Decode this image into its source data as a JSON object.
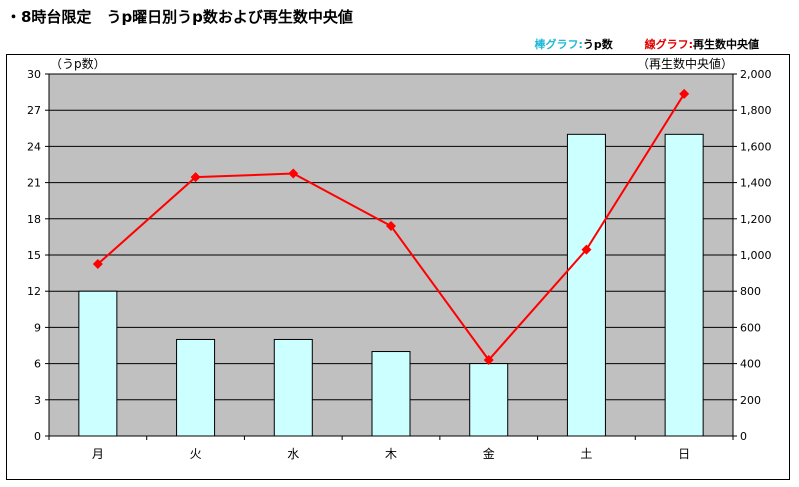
{
  "title": "・8時台限定　うp曜日別うp数および再生数中央値",
  "legend": {
    "bar_label": "棒グラフ:",
    "bar_value": "うp数",
    "line_label": "線グラフ:",
    "line_value": "再生数中央値"
  },
  "colors": {
    "bar_fill": "#ccffff",
    "plot_bg": "#c0c0c0",
    "line": "#ff0000",
    "bar_legend": "#1fb8d6",
    "line_legend": "#e00000"
  },
  "chart_data": {
    "type": "bar",
    "categories": [
      "月",
      "火",
      "水",
      "木",
      "金",
      "土",
      "日"
    ],
    "series": [
      {
        "type": "bar",
        "axis": "left",
        "values": [
          12,
          8,
          8,
          7,
          6,
          25,
          25
        ]
      },
      {
        "type": "line",
        "axis": "right",
        "values": [
          950,
          1430,
          1450,
          1160,
          420,
          1030,
          1890
        ]
      }
    ],
    "y_left": {
      "label": "（うp数）",
      "min": 0,
      "max": 30,
      "ticks": [
        "0",
        "3",
        "6",
        "9",
        "12",
        "15",
        "18",
        "21",
        "24",
        "27",
        "30"
      ]
    },
    "y_right": {
      "label": "（再生数中央値）",
      "min": 0,
      "max": 2000,
      "ticks": [
        "0",
        "200",
        "400",
        "600",
        "800",
        "1,000",
        "1,200",
        "1,400",
        "1,600",
        "1,800",
        "2,000"
      ]
    },
    "grid": true
  }
}
